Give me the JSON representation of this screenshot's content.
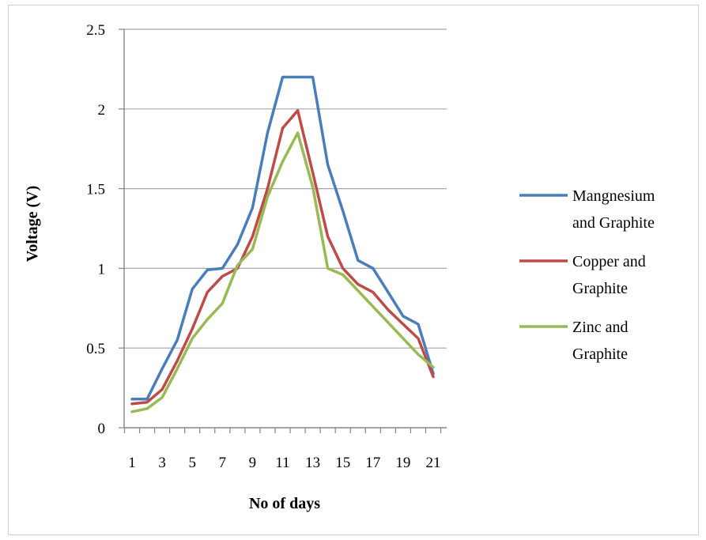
{
  "chart_data": {
    "type": "line",
    "xlabel": "No of days",
    "ylabel": "Voltage (V)",
    "ylim": [
      0,
      2.5
    ],
    "yticks": [
      "0",
      "0.5",
      "1",
      "1.5",
      "2",
      "2.5"
    ],
    "xticks": [
      "1",
      "3",
      "5",
      "7",
      "9",
      "11",
      "13",
      "15",
      "17",
      "19",
      "21"
    ],
    "x": [
      1,
      2,
      3,
      4,
      5,
      6,
      7,
      8,
      9,
      10,
      11,
      12,
      13,
      14,
      15,
      16,
      17,
      18,
      19,
      20,
      21
    ],
    "grid": "horizontal",
    "legend_position": "right",
    "series": [
      {
        "name_lines": [
          "Mangnesium",
          "and Graphite"
        ],
        "color": "#4a7ebb",
        "values": [
          0.18,
          0.18,
          0.37,
          0.55,
          0.87,
          0.99,
          1.0,
          1.15,
          1.38,
          1.85,
          2.2,
          2.2,
          2.2,
          1.65,
          1.36,
          1.05,
          1.0,
          0.85,
          0.7,
          0.65,
          0.34
        ]
      },
      {
        "name_lines": [
          "Copper and",
          "Graphite"
        ],
        "color": "#be4b48",
        "values": [
          0.15,
          0.16,
          0.24,
          0.42,
          0.62,
          0.85,
          0.95,
          1.0,
          1.2,
          1.5,
          1.88,
          1.99,
          1.6,
          1.2,
          1.0,
          0.9,
          0.85,
          0.74,
          0.65,
          0.56,
          0.32
        ]
      },
      {
        "name_lines": [
          "Zinc and",
          "Graphite"
        ],
        "color": "#98b954",
        "values": [
          0.1,
          0.12,
          0.19,
          0.37,
          0.56,
          0.68,
          0.78,
          1.02,
          1.12,
          1.45,
          1.67,
          1.85,
          1.51,
          1.0,
          0.96,
          0.86,
          0.76,
          0.66,
          0.56,
          0.46,
          0.38
        ]
      }
    ]
  }
}
